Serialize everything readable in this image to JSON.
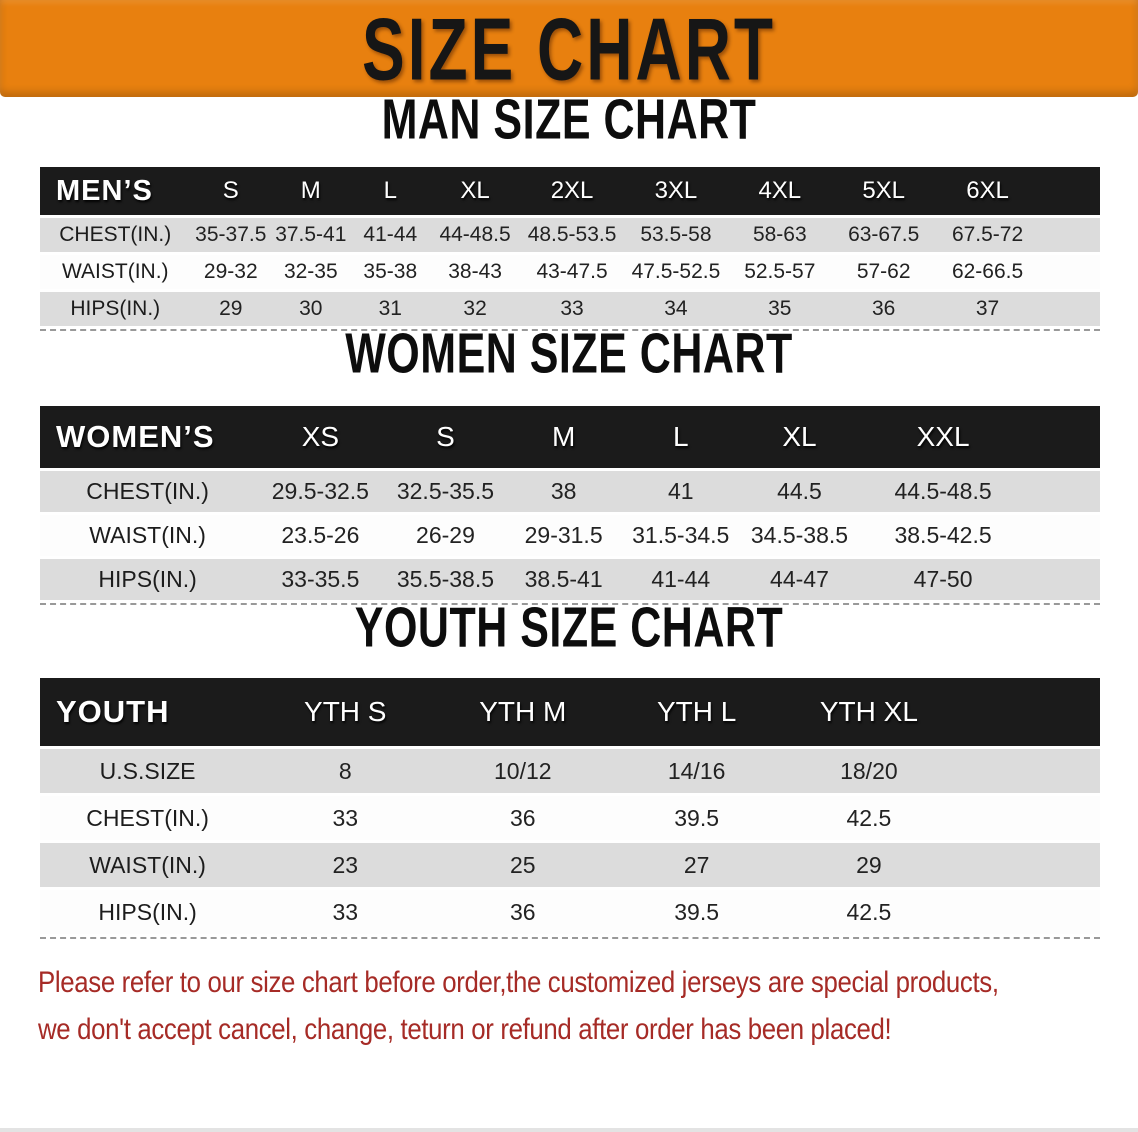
{
  "banner": {
    "title": "SIZE CHART"
  },
  "sections": [
    {
      "id": "men",
      "title": "MAN SIZE CHART",
      "header_label": "MEN’S",
      "columns": [
        "S",
        "M",
        "L",
        "XL",
        "2XL",
        "3XL",
        "4XL",
        "5XL",
        "6XL"
      ],
      "rows": [
        {
          "label": "CHEST(IN.)",
          "values": [
            "35-37.5",
            "37.5-41",
            "41-44",
            "44-48.5",
            "48.5-53.5",
            "53.5-58",
            "58-63",
            "63-67.5",
            "67.5-72"
          ]
        },
        {
          "label": "WAIST(IN.)",
          "values": [
            "29-32",
            "32-35",
            "35-38",
            "38-43",
            "43-47.5",
            "47.5-52.5",
            "52.5-57",
            "57-62",
            "62-66.5"
          ]
        },
        {
          "label": "HIPS(IN.)",
          "values": [
            "29",
            "30",
            "31",
            "32",
            "33",
            "34",
            "35",
            "36",
            "37"
          ]
        }
      ]
    },
    {
      "id": "women",
      "title": "WOMEN SIZE CHART",
      "header_label": "WOMEN’S",
      "columns": [
        "XS",
        "S",
        "M",
        "L",
        "XL",
        "XXL"
      ],
      "rows": [
        {
          "label": "CHEST(IN.)",
          "values": [
            "29.5-32.5",
            "32.5-35.5",
            "38",
            "41",
            "44.5",
            "44.5-48.5"
          ]
        },
        {
          "label": "WAIST(IN.)",
          "values": [
            "23.5-26",
            "26-29",
            "29-31.5",
            "31.5-34.5",
            "34.5-38.5",
            "38.5-42.5"
          ]
        },
        {
          "label": "HIPS(IN.)",
          "values": [
            "33-35.5",
            "35.5-38.5",
            "38.5-41",
            "41-44",
            "44-47",
            "47-50"
          ]
        }
      ]
    },
    {
      "id": "youth",
      "title": "YOUTH SIZE CHART",
      "header_label": "YOUTH",
      "columns": [
        "YTH S",
        "YTH M",
        "YTH L",
        "YTH XL"
      ],
      "rows": [
        {
          "label": "U.S.SIZE",
          "values": [
            "8",
            "10/12",
            "14/16",
            "18/20"
          ]
        },
        {
          "label": "CHEST(IN.)",
          "values": [
            "33",
            "36",
            "39.5",
            "42.5"
          ]
        },
        {
          "label": "WAIST(IN.)",
          "values": [
            "23",
            "25",
            "27",
            "29"
          ]
        },
        {
          "label": "HIPS(IN.)",
          "values": [
            "33",
            "36",
            "39.5",
            "42.5"
          ]
        }
      ]
    }
  ],
  "footer": {
    "line1": "Please refer to our size chart before order,the customized jerseys are special products,",
    "line2": "we don't accept cancel, change, teturn or refund after order has been placed!"
  },
  "colors": {
    "banner_orange": "#e8800f",
    "header_black": "#1b1b1b",
    "row_gray": "#dcdcdc",
    "footer_red": "#a62b26"
  }
}
